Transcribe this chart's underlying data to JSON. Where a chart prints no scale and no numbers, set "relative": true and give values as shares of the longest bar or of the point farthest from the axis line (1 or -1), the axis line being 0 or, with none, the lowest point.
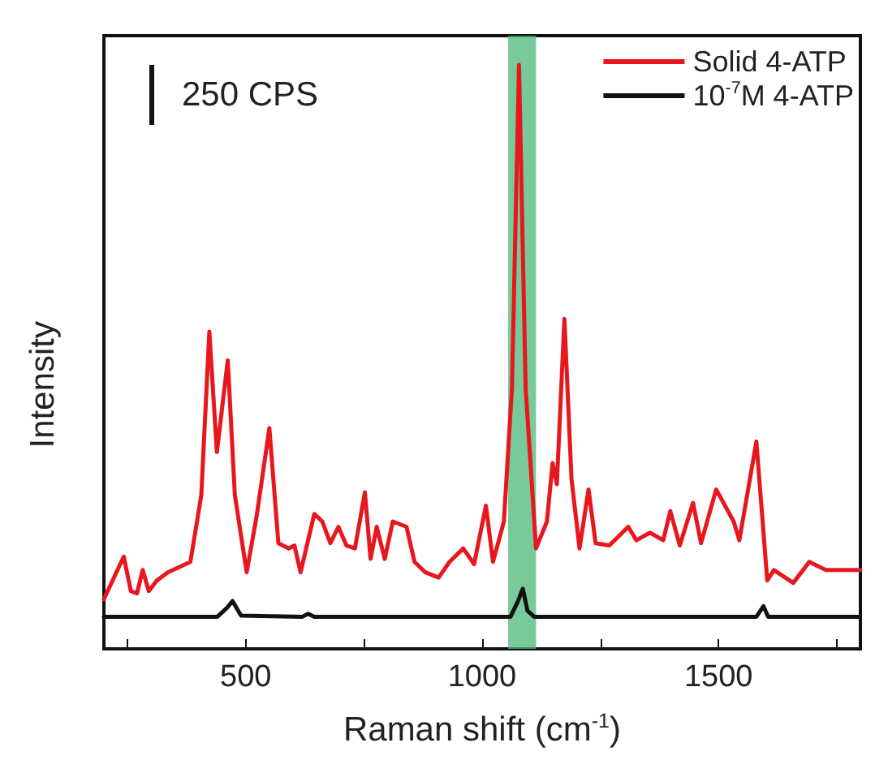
{
  "chart_data": {
    "type": "line",
    "relative": true,
    "xlabel": "Raman shift (cm$^{-1}$)",
    "ylabel": "Intensity",
    "annotations": [
      "250 CPS"
    ],
    "xlim": [
      200,
      1800
    ],
    "xticks": [
      {
        "value": 250,
        "label": null
      },
      500,
      {
        "value": 750,
        "label": null
      },
      1000,
      {
        "value": 1250,
        "label": null
      },
      1500,
      {
        "value": 1750,
        "label": null
      }
    ],
    "grid": false,
    "legend": "top right",
    "marker": "none",
    "line_style": "solid",
    "bands": [
      {
        "axis": "x",
        "from": 1055,
        "to": 1114,
        "color": "#4cb87a"
      }
    ],
    "series": [
      {
        "name": "Solid 4-ATP",
        "color": "#e8161d",
        "x": [
          200,
          242,
          257,
          270,
          282,
          295,
          312,
          335,
          383,
          406,
          423,
          439,
          462,
          477,
          502,
          523,
          550,
          569,
          591,
          603,
          616,
          645,
          662,
          679,
          696,
          713,
          731,
          752,
          764,
          777,
          794,
          811,
          840,
          857,
          880,
          908,
          931,
          960,
          983,
          1008,
          1023,
          1046,
          1063,
          1078,
          1092,
          1114,
          1137,
          1149,
          1158,
          1174,
          1189,
          1206,
          1225,
          1240,
          1269,
          1309,
          1326,
          1355,
          1383,
          1398,
          1418,
          1446,
          1463,
          1495,
          1532,
          1544,
          1580,
          1603,
          1617,
          1658,
          1692,
          1727,
          1772,
          1800
        ],
        "values": [
          0.085,
          0.158,
          0.099,
          0.095,
          0.135,
          0.099,
          0.117,
          0.131,
          0.149,
          0.263,
          0.543,
          0.337,
          0.494,
          0.263,
          0.131,
          0.227,
          0.378,
          0.181,
          0.172,
          0.177,
          0.131,
          0.231,
          0.218,
          0.181,
          0.209,
          0.177,
          0.172,
          0.268,
          0.154,
          0.209,
          0.154,
          0.218,
          0.209,
          0.149,
          0.131,
          0.122,
          0.149,
          0.172,
          0.145,
          0.245,
          0.149,
          0.218,
          0.446,
          1.0,
          0.446,
          0.172,
          0.218,
          0.318,
          0.282,
          0.565,
          0.291,
          0.172,
          0.273,
          0.181,
          0.177,
          0.209,
          0.186,
          0.199,
          0.186,
          0.236,
          0.177,
          0.25,
          0.181,
          0.273,
          0.218,
          0.186,
          0.355,
          0.117,
          0.135,
          0.113,
          0.149,
          0.135,
          0.135,
          0.135
        ]
      },
      {
        "name": "10$^{-7}$M 4-ATP",
        "color": "#111111",
        "x": [
          200,
          440,
          460,
          472,
          490,
          620,
          632,
          645,
          1060,
          1075,
          1086,
          1096,
          1110,
          1580,
          1595,
          1605,
          1800
        ],
        "values": [
          0.055,
          0.055,
          0.07,
          0.082,
          0.057,
          0.055,
          0.06,
          0.055,
          0.055,
          0.08,
          0.103,
          0.065,
          0.055,
          0.055,
          0.073,
          0.055,
          0.055
        ]
      }
    ]
  }
}
